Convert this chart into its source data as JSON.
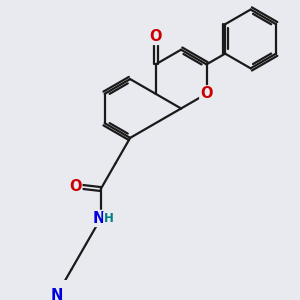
{
  "bg_color": "#e8eaf0",
  "bond_color": "#1a1a1a",
  "bond_width": 1.6,
  "atom_colors": {
    "O": "#cc0000",
    "N": "#0000dd",
    "H_on_N": "#008080"
  },
  "font_size_atom": 10.5,
  "font_size_H": 8.5
}
